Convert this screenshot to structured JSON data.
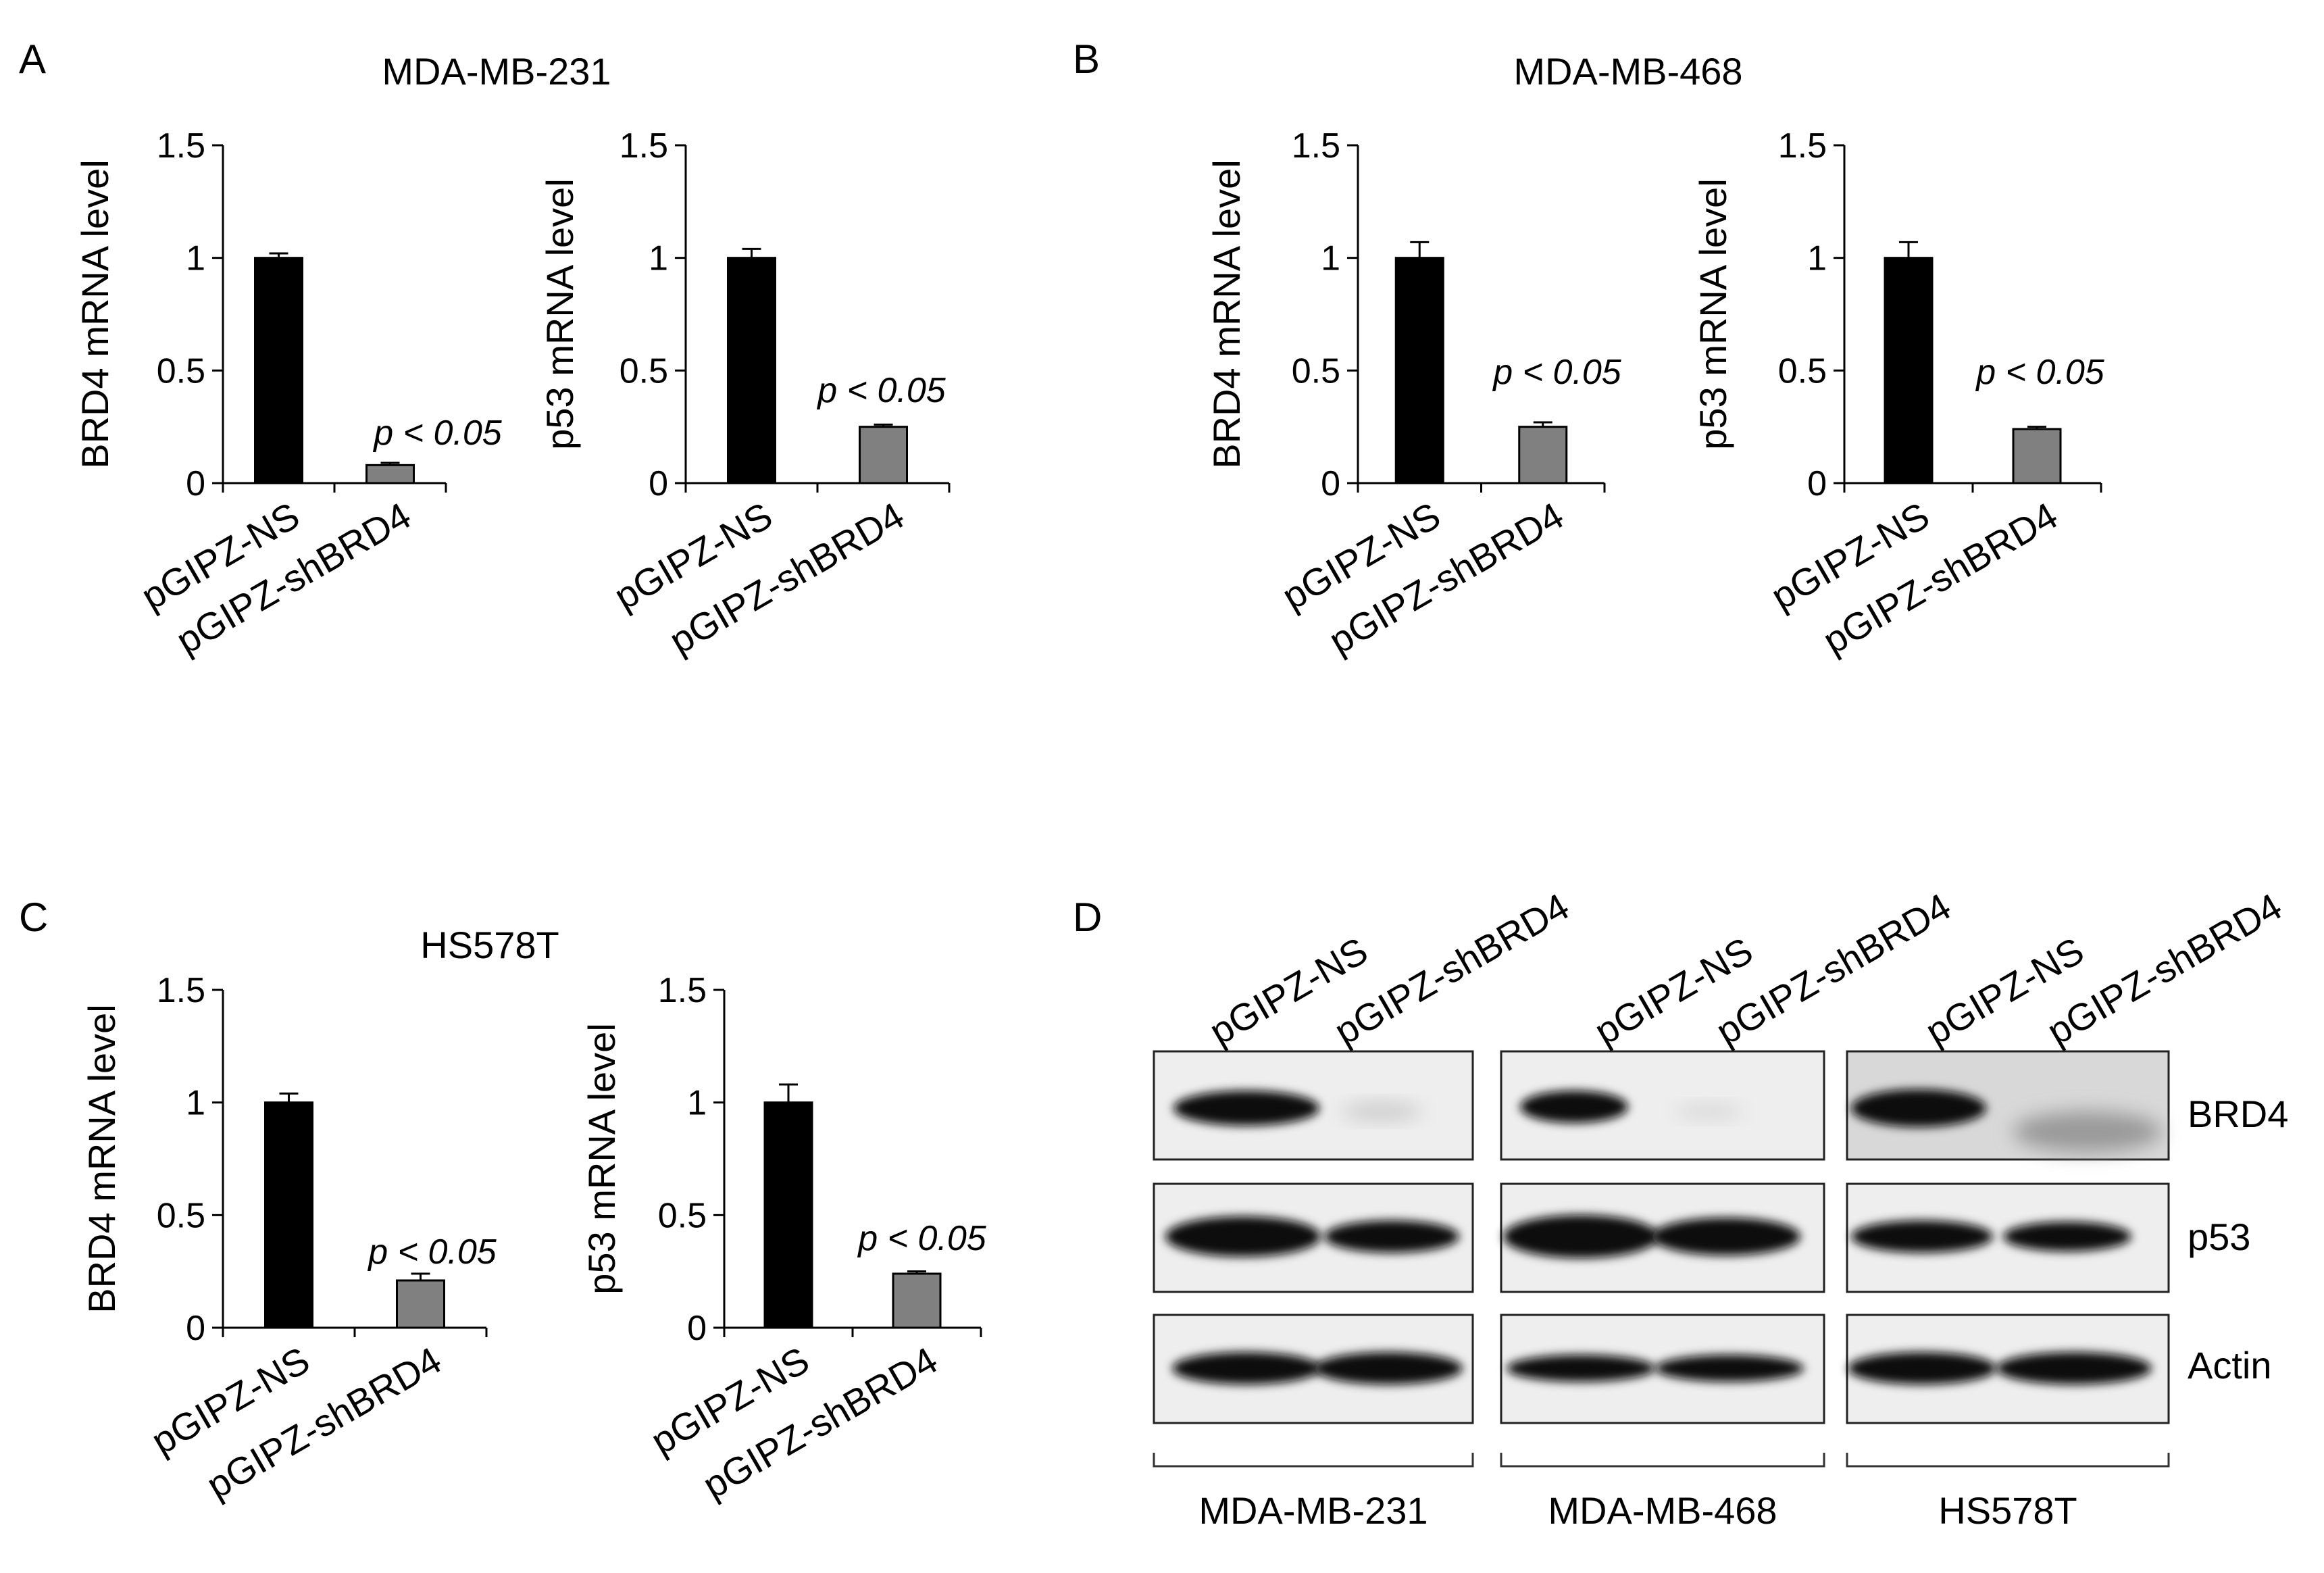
{
  "panels": [
    {
      "letter": "A",
      "title": "MDA-MB-231"
    },
    {
      "letter": "B",
      "title": "MDA-MB-468"
    },
    {
      "letter": "C",
      "title": "HS578T"
    },
    {
      "letter": "D",
      "title": ""
    }
  ],
  "chart_data": [
    {
      "panel": "A",
      "type": "bar",
      "categories": [
        "pGIPZ-NS",
        "pGIPZ-shBRD4"
      ],
      "values": [
        1.0,
        0.08
      ],
      "errors": [
        0.02,
        0.01
      ],
      "colors": [
        "#000000",
        "#808080"
      ],
      "ylabel": "BRD4 mRNA level",
      "ylim": [
        0,
        1.5
      ],
      "yticks": [
        "0",
        "0.5",
        "1",
        "1.5"
      ],
      "annotation": "p < 0.05"
    },
    {
      "panel": "A",
      "type": "bar",
      "categories": [
        "pGIPZ-NS",
        "pGIPZ-shBRD4"
      ],
      "values": [
        1.0,
        0.25
      ],
      "errors": [
        0.04,
        0.01
      ],
      "colors": [
        "#000000",
        "#808080"
      ],
      "ylabel": "p53 mRNA level",
      "ylim": [
        0,
        1.5
      ],
      "yticks": [
        "0",
        "0.5",
        "1",
        "1.5"
      ],
      "annotation": "p < 0.05"
    },
    {
      "panel": "B",
      "type": "bar",
      "categories": [
        "pGIPZ-NS",
        "pGIPZ-shBRD4"
      ],
      "values": [
        1.0,
        0.25
      ],
      "errors": [
        0.07,
        0.02
      ],
      "colors": [
        "#000000",
        "#808080"
      ],
      "ylabel": "BRD4 mRNA level",
      "ylim": [
        0,
        1.5
      ],
      "yticks": [
        "0",
        "0.5",
        "1",
        "1.5"
      ],
      "annotation": "p < 0.05"
    },
    {
      "panel": "B",
      "type": "bar",
      "categories": [
        "pGIPZ-NS",
        "pGIPZ-shBRD4"
      ],
      "values": [
        1.0,
        0.24
      ],
      "errors": [
        0.07,
        0.01
      ],
      "colors": [
        "#000000",
        "#808080"
      ],
      "ylabel": "p53 mRNA level",
      "ylim": [
        0,
        1.5
      ],
      "yticks": [
        "0",
        "0.5",
        "1",
        "1.5"
      ],
      "annotation": "p < 0.05"
    },
    {
      "panel": "C",
      "type": "bar",
      "categories": [
        "pGIPZ-NS",
        "pGIPZ-shBRD4"
      ],
      "values": [
        1.0,
        0.21
      ],
      "errors": [
        0.04,
        0.03
      ],
      "colors": [
        "#000000",
        "#808080"
      ],
      "ylabel": "BRD4 mRNA level",
      "ylim": [
        0,
        1.5
      ],
      "yticks": [
        "0",
        "0.5",
        "1",
        "1.5"
      ],
      "annotation": "p < 0.05"
    },
    {
      "panel": "C",
      "type": "bar",
      "categories": [
        "pGIPZ-NS",
        "pGIPZ-shBRD4"
      ],
      "values": [
        1.0,
        0.24
      ],
      "errors": [
        0.08,
        0.01
      ],
      "colors": [
        "#000000",
        "#808080"
      ],
      "ylabel": "p53 mRNA level",
      "ylim": [
        0,
        1.5
      ],
      "yticks": [
        "0",
        "0.5",
        "1",
        "1.5"
      ],
      "annotation": "p < 0.05"
    }
  ],
  "blot": {
    "lane_labels": [
      "pGIPZ-NS",
      "pGIPZ-shBRD4",
      "pGIPZ-NS",
      "pGIPZ-shBRD4",
      "pGIPZ-NS",
      "pGIPZ-shBRD4"
    ],
    "rows": [
      "BRD4",
      "p53",
      "Actin"
    ],
    "cell_lines": [
      "MDA-MB-231",
      "MDA-MB-468",
      "HS578T"
    ]
  }
}
